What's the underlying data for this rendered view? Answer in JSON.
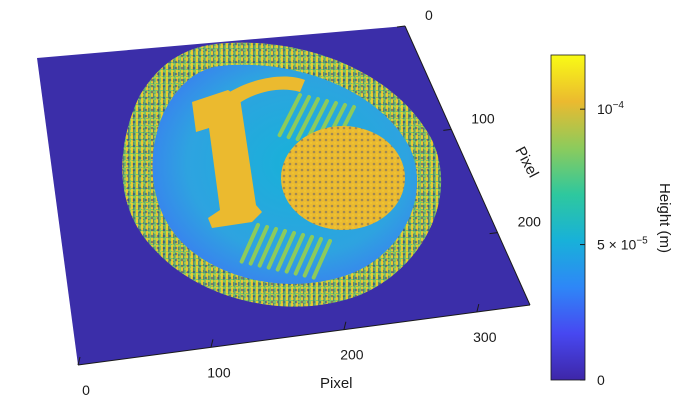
{
  "chart_data": {
    "type": "surface",
    "title": "",
    "colormap": "parula",
    "colormap_stops": [
      "#3e26a8",
      "#4748f1",
      "#2e87f7",
      "#18b1d9",
      "#2ec89e",
      "#8ccb5c",
      "#ebba2f",
      "#f9fb15"
    ],
    "colors": {
      "floor": "#3b2ea9",
      "axis": "#1a1a1a"
    },
    "xaxis": {
      "label": "Pixel",
      "ticks": [
        0,
        100,
        200,
        300
      ],
      "range": [
        0,
        340
      ]
    },
    "yaxis": {
      "label": "Pixel",
      "ticks": [
        0,
        100,
        200
      ],
      "range": [
        0,
        270
      ]
    },
    "zaxis": {
      "label": "Height (m)",
      "range": [
        0,
        0.00012
      ]
    },
    "colorbar": {
      "label": "Height (m)",
      "range": [
        0,
        0.00012
      ],
      "ticks": [
        {
          "value": 0,
          "label": "0"
        },
        {
          "value": 5e-05,
          "label": "5 × 10",
          "sup": "−5"
        },
        {
          "value": 0.0001,
          "label": "10",
          "sup": "−4"
        }
      ]
    },
    "surface_features": [
      {
        "feature": "coin-disc",
        "height": 4e-05
      },
      {
        "feature": "coin-rim",
        "height": 7e-05
      },
      {
        "feature": "digit-1",
        "height": 0.00011
      },
      {
        "feature": "cent-symbol",
        "height": 0.000105
      },
      {
        "feature": "stripes",
        "height": 8e-05
      }
    ]
  }
}
